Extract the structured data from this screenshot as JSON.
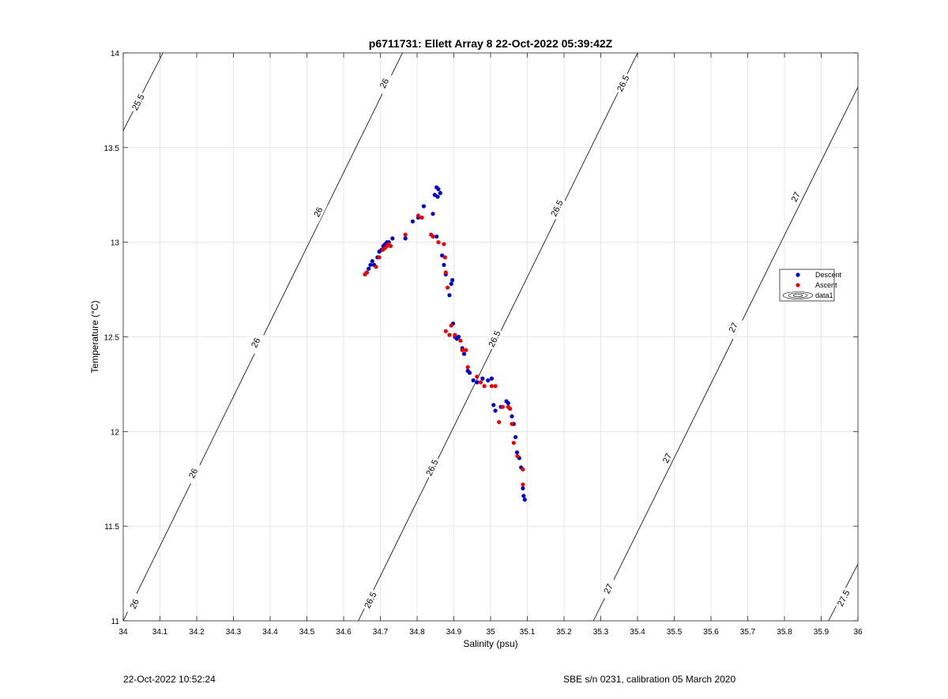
{
  "chart_data": {
    "type": "scatter",
    "title": "p6711731: Ellett Array 8 22-Oct-2022 05:39:42Z",
    "xlabel": "Salinity (psu)",
    "ylabel": "Temperature (°C)",
    "xlim": [
      34,
      36
    ],
    "ylim": [
      11,
      14
    ],
    "x_ticks": [
      34,
      34.1,
      34.2,
      34.3,
      34.4,
      34.5,
      34.6,
      34.7,
      34.8,
      34.9,
      35,
      35.1,
      35.2,
      35.3,
      35.4,
      35.5,
      35.6,
      35.7,
      35.8,
      35.9,
      36
    ],
    "x_tick_labels": [
      "34",
      "34.1",
      "34.2",
      "34.3",
      "34.4",
      "34.5",
      "34.6",
      "34.7",
      "34.8",
      "34.9",
      "35",
      "35.1",
      "35.2",
      "35.3",
      "35.4",
      "35.5",
      "35.6",
      "35.7",
      "35.8",
      "35.9",
      "36"
    ],
    "y_ticks": [
      11,
      11.5,
      12,
      12.5,
      13,
      13.5,
      14
    ],
    "y_tick_labels": [
      "11",
      "11.5",
      "12",
      "12.5",
      "13",
      "13.5",
      "14"
    ],
    "grid": true,
    "legend_position": "right",
    "legend": [
      "Descent",
      "Ascent",
      "data1"
    ],
    "series": [
      {
        "name": "Descent",
        "color": "#0000cc",
        "x": [
          34.663,
          34.668,
          34.673,
          34.678,
          34.683,
          34.692,
          34.697,
          34.703,
          34.708,
          34.713,
          34.718,
          34.723,
          34.733,
          34.768,
          34.788,
          34.803,
          34.818,
          34.843,
          34.848,
          34.853,
          34.858,
          34.863,
          34.856,
          34.853,
          34.868,
          34.873,
          34.878,
          34.888,
          34.893,
          34.896,
          34.898,
          34.903,
          34.908,
          34.913,
          34.923,
          34.928,
          34.938,
          34.943,
          34.953,
          34.963,
          34.978,
          34.993,
          35.003,
          35.008,
          35.013,
          35.028,
          35.043,
          35.048,
          35.058,
          35.063,
          35.068,
          35.072,
          35.078,
          35.083,
          35.088,
          35.09,
          35.093
        ],
        "y": [
          12.84,
          12.86,
          12.88,
          12.9,
          12.88,
          12.92,
          12.95,
          12.96,
          12.98,
          12.99,
          13.0,
          13.0,
          13.02,
          13.02,
          13.11,
          13.13,
          13.19,
          13.15,
          13.25,
          13.29,
          13.28,
          13.26,
          13.24,
          13.03,
          12.93,
          12.88,
          12.83,
          12.72,
          12.78,
          12.8,
          12.57,
          12.5,
          12.49,
          12.5,
          12.44,
          12.41,
          12.32,
          12.31,
          12.27,
          12.26,
          12.28,
          12.27,
          12.28,
          12.14,
          12.11,
          12.13,
          12.16,
          12.15,
          12.08,
          12.04,
          11.97,
          11.89,
          11.86,
          11.81,
          11.7,
          11.66,
          11.64
        ]
      },
      {
        "name": "Ascent",
        "color": "#ee0000",
        "x": [
          34.658,
          34.663,
          34.688,
          34.697,
          34.707,
          34.713,
          34.718,
          34.722,
          34.728,
          34.768,
          34.803,
          34.813,
          34.838,
          34.843,
          34.858,
          34.873,
          34.876,
          34.878,
          34.883,
          34.878,
          34.888,
          34.893,
          34.903,
          34.918,
          34.923,
          34.933,
          34.938,
          34.963,
          34.973,
          34.983,
          35.003,
          35.013,
          35.023,
          35.033,
          35.048,
          35.053,
          35.058,
          35.063,
          35.073,
          35.088,
          35.088
        ],
        "y": [
          12.83,
          12.84,
          12.87,
          12.92,
          12.96,
          12.97,
          12.98,
          12.99,
          12.98,
          13.04,
          13.14,
          13.13,
          13.04,
          13.03,
          13.0,
          12.99,
          12.92,
          12.84,
          12.76,
          12.53,
          12.51,
          12.56,
          12.51,
          12.48,
          12.43,
          12.43,
          12.34,
          12.29,
          12.26,
          12.24,
          12.24,
          12.24,
          12.05,
          12.13,
          12.13,
          12.12,
          12.04,
          11.94,
          11.87,
          11.8,
          11.72
        ]
      }
    ],
    "contours": {
      "name": "data1",
      "color": "#000000",
      "levels": [
        {
          "level": "25.5",
          "label": "25.5",
          "points": [
            [
              34.0,
              13.59
            ],
            [
              34.108,
              14.0
            ]
          ],
          "label_positions": [
            [
              34.04,
              13.74
            ]
          ]
        },
        {
          "level": "26",
          "label": "26",
          "points": [
            [
              34.0,
              11.0
            ],
            [
              34.76,
              14.0
            ]
          ],
          "label_positions": [
            [
              34.03,
              11.09
            ],
            [
              34.19,
              11.78
            ],
            [
              34.36,
              12.47
            ],
            [
              34.53,
              13.16
            ],
            [
              34.71,
              13.84
            ]
          ]
        },
        {
          "level": "26.5",
          "label": "26.5",
          "points": [
            [
              34.64,
              11.0
            ],
            [
              35.4,
              14.0
            ]
          ],
          "label_positions": [
            [
              34.672,
              11.11
            ],
            [
              34.84,
              11.81
            ],
            [
              35.01,
              12.49
            ],
            [
              35.18,
              13.18
            ],
            [
              35.36,
              13.84
            ]
          ]
        },
        {
          "level": "27",
          "label": "27",
          "points": [
            [
              35.28,
              11.0
            ],
            [
              36.0,
              13.82
            ]
          ],
          "label_positions": [
            [
              35.32,
              11.17
            ],
            [
              35.48,
              11.86
            ],
            [
              35.66,
              12.55
            ],
            [
              35.83,
              13.24
            ]
          ]
        },
        {
          "level": "27.5",
          "label": "27.5",
          "points": [
            [
              35.92,
              11.0
            ],
            [
              36.0,
              11.3
            ]
          ],
          "label_positions": [
            [
              35.96,
              11.12
            ]
          ]
        }
      ]
    }
  },
  "footer": {
    "left": "22-Oct-2022 10:52:24",
    "right": "SBE s/n 0231, calibration 05 March 2020"
  }
}
